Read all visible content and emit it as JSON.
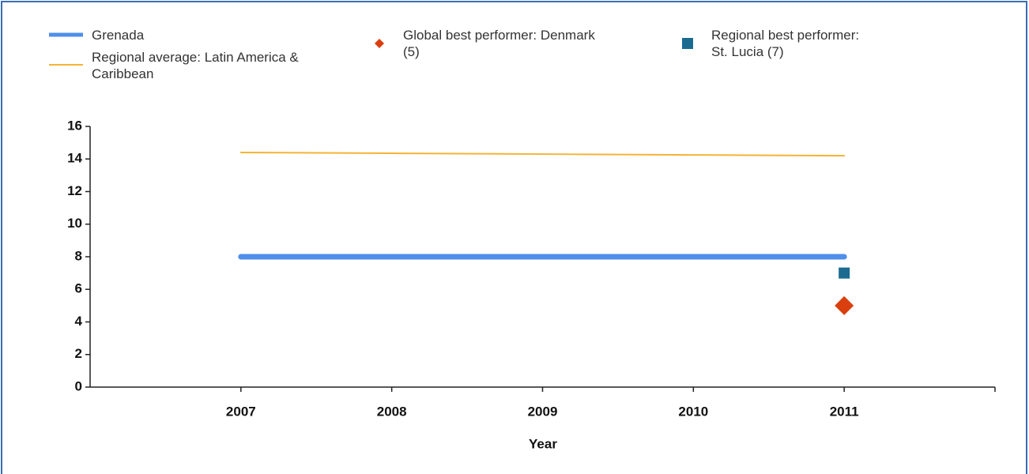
{
  "chart_data": {
    "type": "line",
    "x_label": "Year",
    "x": [
      2007,
      2008,
      2009,
      2010,
      2011
    ],
    "xlim": [
      2006,
      2012
    ],
    "xticks": [
      2007,
      2008,
      2009,
      2010,
      2011
    ],
    "ylim": [
      0,
      16
    ],
    "yticks": [
      0,
      2,
      4,
      6,
      8,
      10,
      12,
      14,
      16
    ],
    "series": [
      {
        "name": "Grenada",
        "color": "#4f8fea",
        "marker": "line",
        "linewidth": 7,
        "values": [
          8,
          8,
          8,
          8,
          8
        ]
      },
      {
        "name": "Regional average: Latin America & Caribbean",
        "color": "#f5b335",
        "marker": "line",
        "linewidth": 2,
        "values": [
          14.4,
          14.35,
          14.3,
          14.25,
          14.2
        ]
      },
      {
        "name": "Global best performer: Denmark (5)",
        "color": "#d9400e",
        "marker": "diamond",
        "values": [
          null,
          null,
          null,
          null,
          5
        ]
      },
      {
        "name": "Regional best performer: St. Lucia (7)",
        "color": "#1b6b91",
        "marker": "square",
        "values": [
          null,
          null,
          null,
          null,
          7
        ]
      }
    ]
  }
}
